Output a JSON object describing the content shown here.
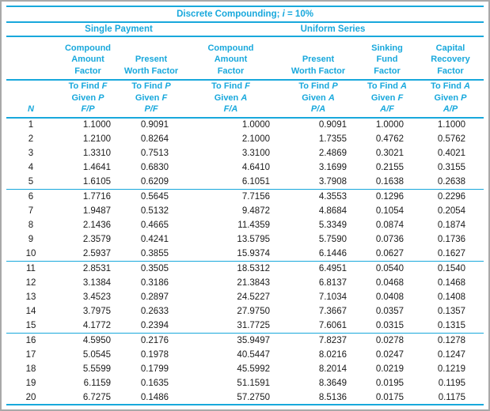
{
  "colors": {
    "accent": "#18A8DC",
    "data_text": "#1a1a1a",
    "frame_border": "#a9a9a9",
    "background": "#ffffff"
  },
  "table": {
    "title_prefix": "Discrete Compounding; ",
    "title_var": "i",
    "title_suffix": " = 10%",
    "n_header": "N",
    "groups": [
      {
        "label": "Single Payment",
        "span": 2
      },
      {
        "label": "Uniform Series",
        "span": 4
      }
    ],
    "factor_headers": [
      "Compound\nAmount\nFactor",
      "Present\nWorth Factor",
      "Compound\nAmount\nFactor",
      "Present\nWorth Factor",
      "Sinking\nFund\nFactor",
      "Capital\nRecovery\nFactor"
    ],
    "find_headers": [
      {
        "find_text": "To Find",
        "find_var": "F",
        "given_text": "Given",
        "given_var": "P",
        "symbol": "F/P"
      },
      {
        "find_text": "To Find",
        "find_var": "P",
        "given_text": "Given",
        "given_var": "F",
        "symbol": "P/F"
      },
      {
        "find_text": "To Find",
        "find_var": "F",
        "given_text": "Given",
        "given_var": "A",
        "symbol": "F/A"
      },
      {
        "find_text": "To Find",
        "find_var": "P",
        "given_text": "Given",
        "given_var": "A",
        "symbol": "P/A"
      },
      {
        "find_text": "To Find",
        "find_var": "A",
        "given_text": "Given",
        "given_var": "F",
        "symbol": "A/F"
      },
      {
        "find_text": "To Find",
        "find_var": "A",
        "given_text": "Given",
        "given_var": "P",
        "symbol": "A/P"
      }
    ],
    "rows": [
      [
        "1",
        "1.1000",
        "0.9091",
        "1.0000",
        "0.9091",
        "1.0000",
        "1.1000"
      ],
      [
        "2",
        "1.2100",
        "0.8264",
        "2.1000",
        "1.7355",
        "0.4762",
        "0.5762"
      ],
      [
        "3",
        "1.3310",
        "0.7513",
        "3.3100",
        "2.4869",
        "0.3021",
        "0.4021"
      ],
      [
        "4",
        "1.4641",
        "0.6830",
        "4.6410",
        "3.1699",
        "0.2155",
        "0.3155"
      ],
      [
        "5",
        "1.6105",
        "0.6209",
        "6.1051",
        "3.7908",
        "0.1638",
        "0.2638"
      ],
      [
        "6",
        "1.7716",
        "0.5645",
        "7.7156",
        "4.3553",
        "0.1296",
        "0.2296"
      ],
      [
        "7",
        "1.9487",
        "0.5132",
        "9.4872",
        "4.8684",
        "0.1054",
        "0.2054"
      ],
      [
        "8",
        "2.1436",
        "0.4665",
        "11.4359",
        "5.3349",
        "0.0874",
        "0.1874"
      ],
      [
        "9",
        "2.3579",
        "0.4241",
        "13.5795",
        "5.7590",
        "0.0736",
        "0.1736"
      ],
      [
        "10",
        "2.5937",
        "0.3855",
        "15.9374",
        "6.1446",
        "0.0627",
        "0.1627"
      ],
      [
        "11",
        "2.8531",
        "0.3505",
        "18.5312",
        "6.4951",
        "0.0540",
        "0.1540"
      ],
      [
        "12",
        "3.1384",
        "0.3186",
        "21.3843",
        "6.8137",
        "0.0468",
        "0.1468"
      ],
      [
        "13",
        "3.4523",
        "0.2897",
        "24.5227",
        "7.1034",
        "0.0408",
        "0.1408"
      ],
      [
        "14",
        "3.7975",
        "0.2633",
        "27.9750",
        "7.3667",
        "0.0357",
        "0.1357"
      ],
      [
        "15",
        "4.1772",
        "0.2394",
        "31.7725",
        "7.6061",
        "0.0315",
        "0.1315"
      ],
      [
        "16",
        "4.5950",
        "0.2176",
        "35.9497",
        "7.8237",
        "0.0278",
        "0.1278"
      ],
      [
        "17",
        "5.0545",
        "0.1978",
        "40.5447",
        "8.0216",
        "0.0247",
        "0.1247"
      ],
      [
        "18",
        "5.5599",
        "0.1799",
        "45.5992",
        "8.2014",
        "0.0219",
        "0.1219"
      ],
      [
        "19",
        "6.1159",
        "0.1635",
        "51.1591",
        "8.3649",
        "0.0195",
        "0.1195"
      ],
      [
        "20",
        "6.7275",
        "0.1486",
        "57.2750",
        "8.5136",
        "0.0175",
        "0.1175"
      ]
    ]
  }
}
